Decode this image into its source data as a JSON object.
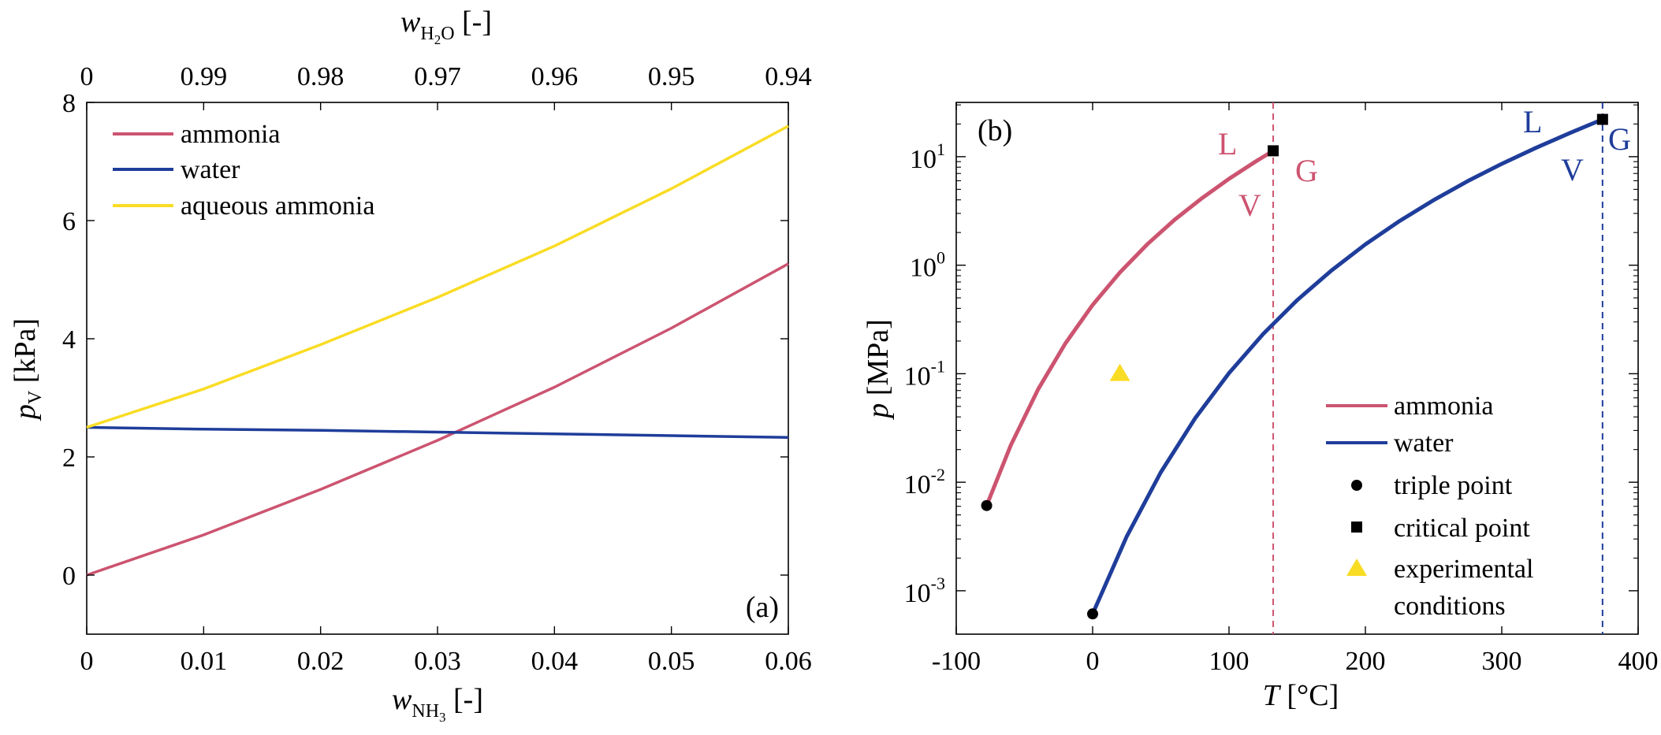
{
  "chart_data": [
    {
      "type": "line",
      "panel_label": "(a)",
      "xlabel": {
        "var": "w",
        "sub": "NH",
        "sub3": "3",
        "unit": " [-]"
      },
      "ylabel": {
        "var": "p",
        "sub": "V",
        "unit": " [kPa]"
      },
      "top_xlabel": {
        "var": "w",
        "sub": "H",
        "sub2": "2",
        "subO": "O",
        "unit": " [-]"
      },
      "xlim": [
        0,
        0.06
      ],
      "ylim": [
        -1,
        8
      ],
      "xticks": [
        0,
        0.01,
        0.02,
        0.03,
        0.04,
        0.05,
        0.06
      ],
      "xtick_labels": [
        "0",
        "0.01",
        "0.02",
        "0.03",
        "0.04",
        "0.05",
        "0.06"
      ],
      "yticks": [
        0,
        2,
        4,
        6,
        8
      ],
      "ytick_labels": [
        "0",
        "2",
        "4",
        "6",
        "8"
      ],
      "top_xticks": [
        0,
        0.01,
        0.02,
        0.03,
        0.04,
        0.05,
        0.06
      ],
      "top_xtick_labels": [
        "0",
        "0.99",
        "0.98",
        "0.97",
        "0.96",
        "0.95",
        "0.94"
      ],
      "legend_position": "top-left",
      "x": [
        0,
        0.01,
        0.02,
        0.03,
        0.04,
        0.05,
        0.06
      ],
      "series": [
        {
          "name": "ammonia",
          "color": "#cc5470",
          "values": [
            0,
            0.68,
            1.45,
            2.28,
            3.18,
            4.18,
            5.27
          ]
        },
        {
          "name": "water",
          "color": "#1f3d9a",
          "values": [
            2.5,
            2.47,
            2.45,
            2.42,
            2.39,
            2.36,
            2.33
          ]
        },
        {
          "name": "aqueous ammonia",
          "color": "#f9dc24",
          "values": [
            2.5,
            3.15,
            3.9,
            4.7,
            5.57,
            6.54,
            7.6
          ]
        }
      ]
    },
    {
      "type": "line",
      "panel_label": "(b)",
      "xlabel": {
        "var": "T",
        "unit": " [°C]"
      },
      "ylabel": {
        "var": "p",
        "unit": " [MPa]"
      },
      "xlim": [
        -100,
        400
      ],
      "ylim_log10": [
        -3.4,
        1.5
      ],
      "yscale": "log",
      "xticks": [
        -100,
        0,
        100,
        200,
        300,
        400
      ],
      "xtick_labels": [
        "-100",
        "0",
        "100",
        "200",
        "300",
        "400"
      ],
      "yticks_log10": [
        -3,
        -2,
        -1,
        0,
        1
      ],
      "ytick_base": "10",
      "ytick_exponents": [
        "-3",
        "-2",
        "-1",
        "0",
        "1"
      ],
      "legend_position": "bottom-right",
      "series": [
        {
          "name": "ammonia",
          "color": "#cc5470",
          "T": [
            -77.7,
            -60,
            -40,
            -20,
            0,
            20,
            40,
            60,
            80,
            100,
            120,
            132.4
          ],
          "p_MPa": [
            0.0061,
            0.0219,
            0.0717,
            0.19,
            0.43,
            0.857,
            1.555,
            2.614,
            4.13,
            6.25,
            9.11,
            11.33
          ]
        },
        {
          "name": "water",
          "color": "#1f3d9a",
          "T": [
            0.01,
            25,
            50,
            75,
            100,
            125,
            150,
            175,
            200,
            225,
            250,
            275,
            300,
            325,
            350,
            373.9
          ],
          "p_MPa": [
            0.000612,
            0.00317,
            0.01235,
            0.0386,
            0.1014,
            0.2322,
            0.476,
            0.892,
            1.555,
            2.55,
            3.97,
            5.95,
            8.59,
            12.06,
            16.53,
            22.06
          ]
        }
      ],
      "markers": [
        {
          "name": "triple point",
          "shape": "circle",
          "color": "#000000"
        },
        {
          "name": "critical point",
          "shape": "square",
          "color": "#000000"
        },
        {
          "name": "experimental conditions",
          "shape": "triangle",
          "color": "#f9dc24",
          "T": 20,
          "p_MPa": 0.1013
        }
      ],
      "legend_labels": [
        "ammonia",
        "water",
        "triple point",
        "critical point",
        "experimental",
        "conditions"
      ],
      "critical_lines": [
        {
          "series": "ammonia",
          "T": 132.4
        },
        {
          "series": "water",
          "T": 373.9
        }
      ],
      "phase_labels": [
        {
          "series": "ammonia",
          "L": "L",
          "V": "V",
          "G": "G"
        },
        {
          "series": "water",
          "L": "L",
          "V": "V",
          "G": "G"
        }
      ]
    }
  ]
}
